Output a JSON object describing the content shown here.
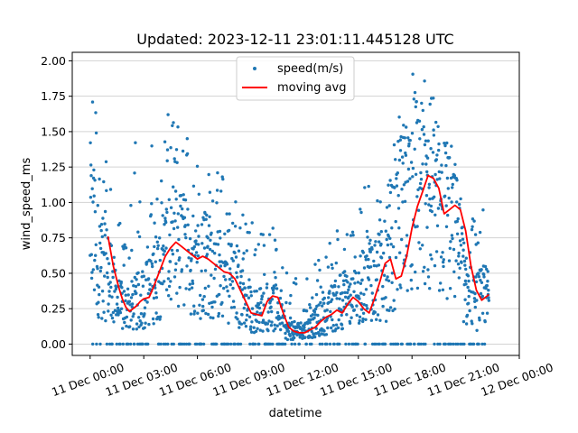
{
  "chart_data": {
    "type": "scatter",
    "title": "Updated: 2023-12-11 23:01:11.445128 UTC",
    "xlabel": "datetime",
    "ylabel": "wind_speed_ms",
    "xlim_hours": [
      -1.0,
      24.0
    ],
    "ylim": [
      -0.08,
      2.06
    ],
    "xticks": [
      {
        "hour": 0,
        "label": "11 Dec 00:00"
      },
      {
        "hour": 3,
        "label": "11 Dec 03:00"
      },
      {
        "hour": 6,
        "label": "11 Dec 06:00"
      },
      {
        "hour": 9,
        "label": "11 Dec 09:00"
      },
      {
        "hour": 12,
        "label": "11 Dec 12:00"
      },
      {
        "hour": 15,
        "label": "11 Dec 15:00"
      },
      {
        "hour": 18,
        "label": "11 Dec 18:00"
      },
      {
        "hour": 21,
        "label": "11 Dec 21:00"
      },
      {
        "hour": 24,
        "label": "12 Dec 00:00"
      }
    ],
    "yticks": [
      {
        "value": 0.0,
        "label": "0.00"
      },
      {
        "value": 0.25,
        "label": "0.25"
      },
      {
        "value": 0.5,
        "label": "0.50"
      },
      {
        "value": 0.75,
        "label": "0.75"
      },
      {
        "value": 1.0,
        "label": "1.00"
      },
      {
        "value": 1.25,
        "label": "1.25"
      },
      {
        "value": 1.5,
        "label": "1.50"
      },
      {
        "value": 1.75,
        "label": "1.75"
      },
      {
        "value": 2.0,
        "label": "2.00"
      }
    ],
    "grid": "horizontal",
    "legend_position": "top-center",
    "series": [
      {
        "name": "speed(m/s)",
        "kind": "scatter",
        "color": "#1f77b4",
        "envelope": [
          [
            0.0,
            0.9,
            1.9
          ],
          [
            0.5,
            0.6,
            1.8
          ],
          [
            1.0,
            0.5,
            1.4
          ],
          [
            1.5,
            0.3,
            0.9
          ],
          [
            2.0,
            0.25,
            0.8
          ],
          [
            2.5,
            0.3,
            1.45
          ],
          [
            3.0,
            0.35,
            1.3
          ],
          [
            3.5,
            0.45,
            1.45
          ],
          [
            4.0,
            0.6,
            1.55
          ],
          [
            4.5,
            0.7,
            1.65
          ],
          [
            5.0,
            0.7,
            1.6
          ],
          [
            5.5,
            0.65,
            1.6
          ],
          [
            6.0,
            0.6,
            1.5
          ],
          [
            6.5,
            0.6,
            1.4
          ],
          [
            7.0,
            0.55,
            1.25
          ],
          [
            7.5,
            0.5,
            1.2
          ],
          [
            8.0,
            0.45,
            1.1
          ],
          [
            8.5,
            0.35,
            0.95
          ],
          [
            9.0,
            0.25,
            0.9
          ],
          [
            9.5,
            0.25,
            0.8
          ],
          [
            10.0,
            0.3,
            0.85
          ],
          [
            10.5,
            0.25,
            0.8
          ],
          [
            11.0,
            0.1,
            0.55
          ],
          [
            11.5,
            0.1,
            0.5
          ],
          [
            12.0,
            0.1,
            0.5
          ],
          [
            12.5,
            0.15,
            0.55
          ],
          [
            13.0,
            0.2,
            0.65
          ],
          [
            13.5,
            0.25,
            0.75
          ],
          [
            14.0,
            0.35,
            0.95
          ],
          [
            14.5,
            0.3,
            0.85
          ],
          [
            15.0,
            0.35,
            0.9
          ],
          [
            15.5,
            0.55,
            1.2
          ],
          [
            16.0,
            0.5,
            1.1
          ],
          [
            16.5,
            0.5,
            1.2
          ],
          [
            17.0,
            0.8,
            1.5
          ],
          [
            17.5,
            1.0,
            1.8
          ],
          [
            18.0,
            1.1,
            1.95
          ],
          [
            18.5,
            1.1,
            1.9
          ],
          [
            19.0,
            1.0,
            1.85
          ],
          [
            19.5,
            0.9,
            1.6
          ],
          [
            20.0,
            0.95,
            1.4
          ],
          [
            20.5,
            0.8,
            1.2
          ],
          [
            21.0,
            0.4,
            0.9
          ],
          [
            21.5,
            0.3,
            0.9
          ],
          [
            22.0,
            0.35,
            0.95
          ],
          [
            22.3,
            0.35,
            0.9
          ]
        ]
      },
      {
        "name": "moving avg",
        "kind": "line",
        "color": "#ff0000",
        "points": [
          [
            1.0,
            0.76
          ],
          [
            1.3,
            0.55
          ],
          [
            1.6,
            0.4
          ],
          [
            1.8,
            0.32
          ],
          [
            2.0,
            0.26
          ],
          [
            2.2,
            0.23
          ],
          [
            2.4,
            0.25
          ],
          [
            2.6,
            0.27
          ],
          [
            2.8,
            0.3
          ],
          [
            3.0,
            0.32
          ],
          [
            3.3,
            0.33
          ],
          [
            3.6,
            0.42
          ],
          [
            3.9,
            0.52
          ],
          [
            4.2,
            0.62
          ],
          [
            4.5,
            0.68
          ],
          [
            4.8,
            0.72
          ],
          [
            5.1,
            0.69
          ],
          [
            5.4,
            0.66
          ],
          [
            5.7,
            0.63
          ],
          [
            6.0,
            0.6
          ],
          [
            6.3,
            0.62
          ],
          [
            6.6,
            0.6
          ],
          [
            6.9,
            0.57
          ],
          [
            7.2,
            0.54
          ],
          [
            7.5,
            0.51
          ],
          [
            7.8,
            0.5
          ],
          [
            8.1,
            0.46
          ],
          [
            8.4,
            0.38
          ],
          [
            8.7,
            0.3
          ],
          [
            9.0,
            0.22
          ],
          [
            9.3,
            0.21
          ],
          [
            9.6,
            0.2
          ],
          [
            9.9,
            0.3
          ],
          [
            10.2,
            0.34
          ],
          [
            10.5,
            0.33
          ],
          [
            10.8,
            0.22
          ],
          [
            11.1,
            0.12
          ],
          [
            11.4,
            0.09
          ],
          [
            11.7,
            0.08
          ],
          [
            12.0,
            0.08
          ],
          [
            12.3,
            0.1
          ],
          [
            12.6,
            0.12
          ],
          [
            12.9,
            0.16
          ],
          [
            13.2,
            0.19
          ],
          [
            13.5,
            0.21
          ],
          [
            13.8,
            0.24
          ],
          [
            14.1,
            0.22
          ],
          [
            14.4,
            0.28
          ],
          [
            14.7,
            0.33
          ],
          [
            15.0,
            0.3
          ],
          [
            15.3,
            0.25
          ],
          [
            15.6,
            0.22
          ],
          [
            15.9,
            0.32
          ],
          [
            16.2,
            0.44
          ],
          [
            16.5,
            0.57
          ],
          [
            16.8,
            0.6
          ],
          [
            17.1,
            0.46
          ],
          [
            17.4,
            0.48
          ],
          [
            17.7,
            0.62
          ],
          [
            18.0,
            0.82
          ],
          [
            18.3,
            0.97
          ],
          [
            18.6,
            1.08
          ],
          [
            18.9,
            1.19
          ],
          [
            19.2,
            1.17
          ],
          [
            19.5,
            1.1
          ],
          [
            19.8,
            0.92
          ],
          [
            20.1,
            0.95
          ],
          [
            20.4,
            0.98
          ],
          [
            20.7,
            0.95
          ],
          [
            21.0,
            0.8
          ],
          [
            21.3,
            0.55
          ],
          [
            21.6,
            0.38
          ],
          [
            21.9,
            0.31
          ],
          [
            22.2,
            0.34
          ],
          [
            22.3,
            0.35
          ]
        ]
      }
    ]
  }
}
